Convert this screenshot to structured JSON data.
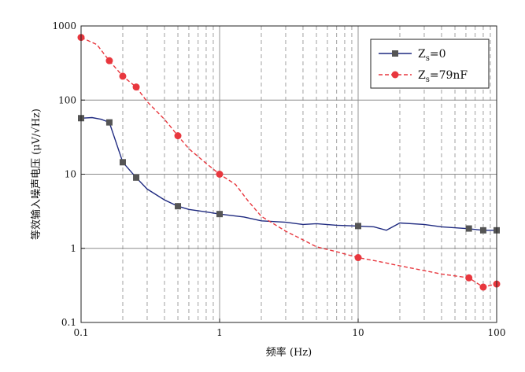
{
  "chart_data": {
    "type": "line",
    "x_scale": "log",
    "y_scale": "log",
    "xlim": [
      0.1,
      100
    ],
    "ylim": [
      0.1,
      1000
    ],
    "xlabel": "频率 (Hz)",
    "ylabel": "等效输入噪声电压 (μV/√Hz)",
    "x_ticks": [
      "0.1",
      "1",
      "10",
      "100"
    ],
    "y_ticks": [
      "0.1",
      "1",
      "10",
      "100",
      "1000"
    ],
    "grid": "major solid gray, minor dashed gray",
    "legend_position": "top-right",
    "series": [
      {
        "name": "Zs=0",
        "name_main": "Z",
        "name_sub": "s",
        "name_rest": "=0",
        "color": "#1f2a80",
        "line_style": "solid",
        "marker": "square",
        "marker_color": "#555555",
        "x": [
          0.1,
          0.12,
          0.14,
          0.16,
          0.2,
          0.25,
          0.3,
          0.4,
          0.5,
          0.6,
          0.8,
          1,
          1.5,
          2,
          3,
          4,
          5,
          7,
          10,
          13,
          16,
          20,
          30,
          40,
          60,
          80,
          100
        ],
        "y": [
          57,
          58,
          55,
          50,
          14.5,
          9,
          6.3,
          4.5,
          3.7,
          3.35,
          3.1,
          2.9,
          2.65,
          2.35,
          2.25,
          2.1,
          2.15,
          2.05,
          2.0,
          1.95,
          1.75,
          2.2,
          2.1,
          1.95,
          1.85,
          1.75,
          1.75
        ],
        "marker_x": [
          0.1,
          0.16,
          0.2,
          0.25,
          0.5,
          1,
          10,
          63,
          80,
          100
        ],
        "marker_y": [
          57,
          50,
          14.5,
          9,
          3.7,
          2.9,
          2.0,
          1.85,
          1.75,
          1.75
        ]
      },
      {
        "name": "Zs=79nF",
        "name_main": "Z",
        "name_sub": "s",
        "name_rest": "=79nF",
        "color": "#e8373e",
        "line_style": "dashed",
        "marker": "circle",
        "marker_color": "#e8373e",
        "x": [
          0.1,
          0.13,
          0.16,
          0.2,
          0.25,
          0.3,
          0.4,
          0.5,
          0.6,
          0.8,
          1,
          1.3,
          1.6,
          2,
          2.5,
          3,
          4,
          5,
          7,
          10,
          15,
          20,
          30,
          40,
          63,
          80,
          100
        ],
        "y": [
          700,
          560,
          340,
          210,
          150,
          95,
          55,
          33,
          22,
          14,
          10,
          7.3,
          4.4,
          2.7,
          2.1,
          1.7,
          1.3,
          1.05,
          0.9,
          0.75,
          0.65,
          0.58,
          0.5,
          0.45,
          0.4,
          0.3,
          0.33
        ],
        "marker_x": [
          0.1,
          0.16,
          0.2,
          0.25,
          0.5,
          1,
          10,
          63,
          80,
          100
        ],
        "marker_y": [
          700,
          340,
          210,
          150,
          33,
          10,
          0.75,
          0.4,
          0.3,
          0.33
        ]
      }
    ]
  }
}
